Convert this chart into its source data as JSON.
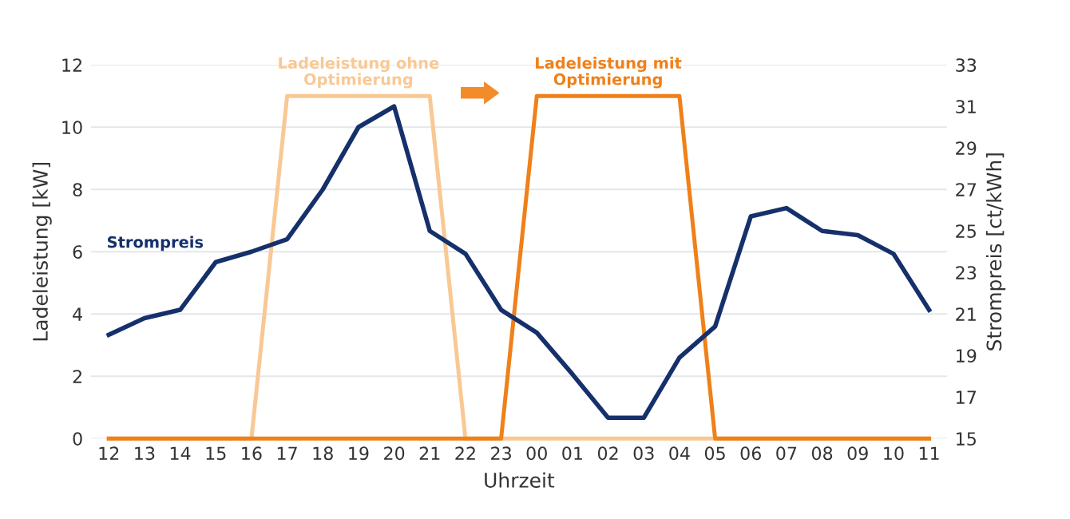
{
  "chart_data": {
    "type": "line",
    "xlabel": "Uhrzeit",
    "ylabel": "Ladeleistung [kW]",
    "y2label": "Strompreis [ct/kWh]",
    "categories": [
      "12",
      "13",
      "14",
      "15",
      "16",
      "17",
      "18",
      "19",
      "20",
      "21",
      "22",
      "23",
      "00",
      "01",
      "02",
      "03",
      "04",
      "05",
      "06",
      "07",
      "08",
      "09",
      "10",
      "11"
    ],
    "series": [
      {
        "name": "Ladeleistung ohne Optimierung",
        "color": "#f9c894",
        "values": [
          0,
          0,
          0,
          0,
          0,
          11,
          11,
          11,
          11,
          11,
          0,
          0,
          0,
          0,
          0,
          0,
          0,
          0,
          0,
          0,
          0,
          0,
          0,
          0
        ]
      },
      {
        "name": "Ladeleistung mit Optimierung",
        "color": "#f08019",
        "values": [
          0,
          0,
          0,
          0,
          0,
          0,
          0,
          0,
          0,
          0,
          0,
          0,
          11,
          11,
          11,
          11,
          11,
          0,
          0,
          0,
          0,
          0,
          0,
          0
        ]
      },
      {
        "name": "Strompreis",
        "color": "#15306b",
        "axis": "y2",
        "values": [
          20.0,
          20.8,
          21.2,
          23.5,
          24.0,
          24.6,
          27.0,
          30.0,
          31.0,
          25.0,
          23.9,
          21.2,
          20.1,
          18.1,
          16.0,
          16.0,
          18.9,
          20.4,
          25.7,
          26.1,
          25.0,
          24.8,
          23.9,
          21.2
        ]
      }
    ],
    "ylim": [
      0,
      12
    ],
    "yticks": [
      0,
      2,
      4,
      6,
      8,
      10,
      12
    ],
    "y2lim": [
      15,
      33
    ],
    "y2ticks": [
      15,
      17,
      19,
      21,
      23,
      25,
      27,
      29,
      31,
      33
    ],
    "grid": "y",
    "legend": false,
    "marker": "none",
    "line_style": "solid"
  }
}
